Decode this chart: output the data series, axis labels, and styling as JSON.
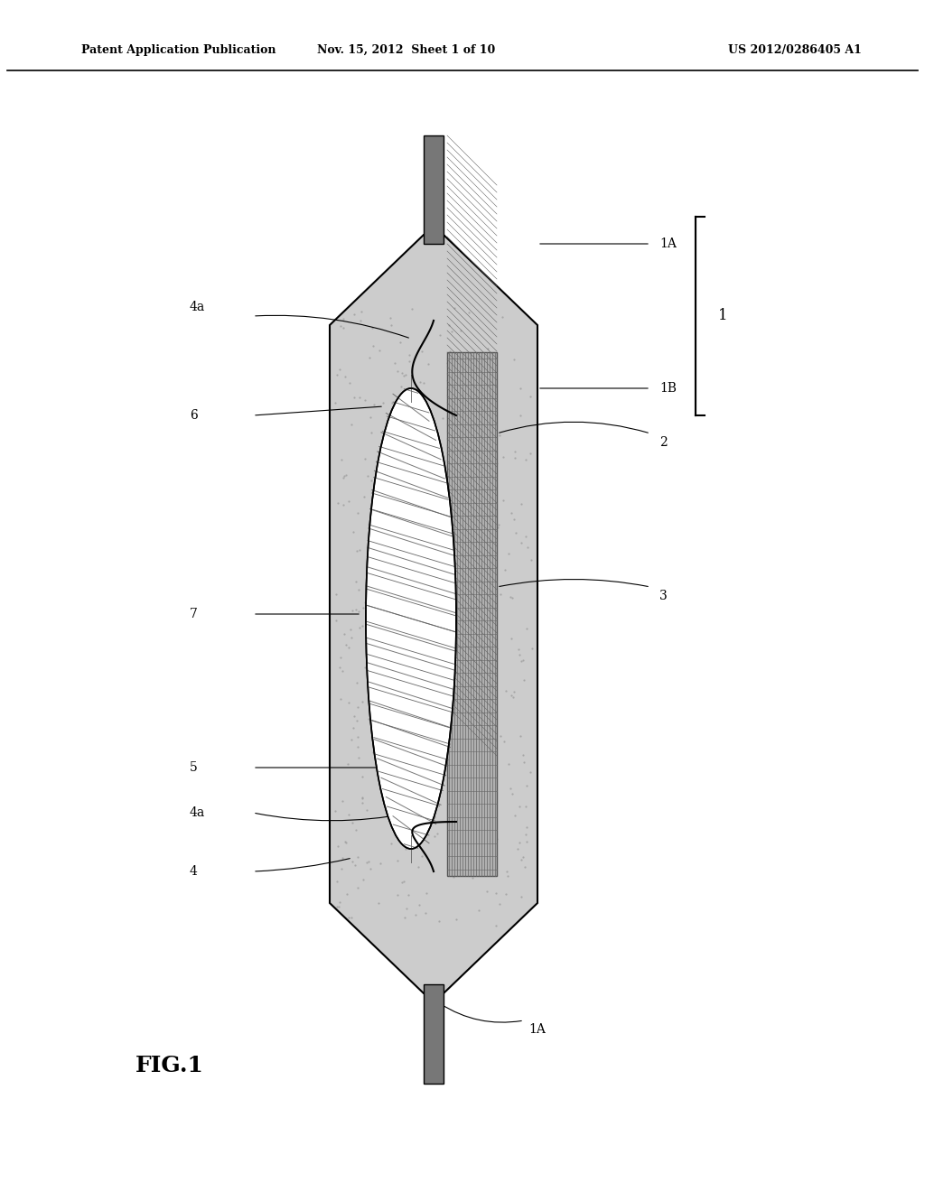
{
  "bg_color": "#ffffff",
  "header_left": "Patent Application Publication",
  "header_mid": "Nov. 15, 2012  Sheet 1 of 10",
  "header_right": "US 2012/0286405 A1",
  "figure_label": "FIG.1",
  "labels": {
    "1A_top": "1A",
    "1A_bot": "1A",
    "1B": "1B",
    "1": "1",
    "2": "2",
    "3": "3",
    "4": "4",
    "4a_top": "4a",
    "4a_bot": "4a",
    "5": "5",
    "6": "6",
    "7": "7"
  },
  "body_outline_color": "#000000",
  "body_fill_color": "#d4d4d4",
  "body_dot_color": "#aaaaaa",
  "lead_color": "#888888",
  "chip_color": "#aaaaaa",
  "hatch_color": "#555555",
  "wire_color": "#000000",
  "line_color": "#000000"
}
